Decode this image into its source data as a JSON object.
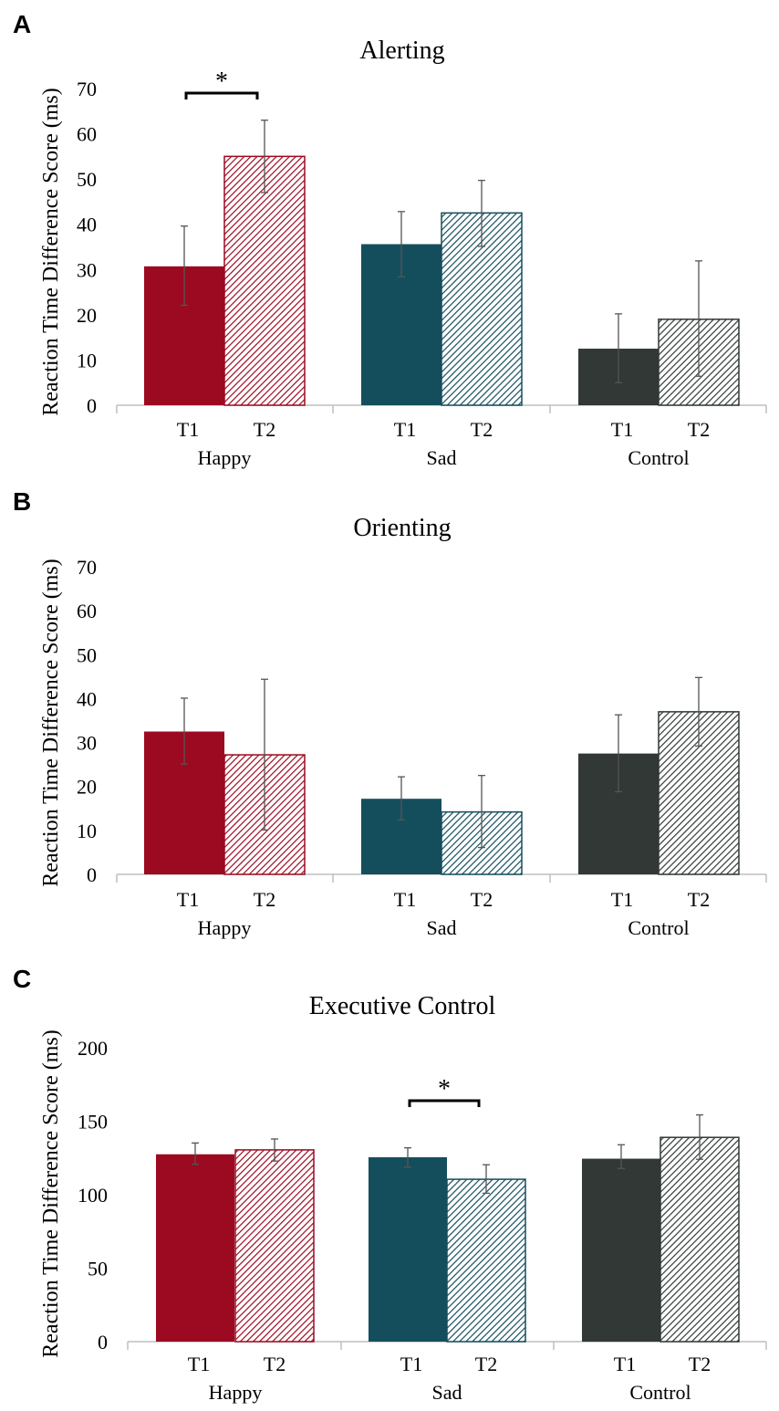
{
  "colors": {
    "happy": "#9b0a20",
    "sad": "#144e5c",
    "control": "#313836",
    "axis": "#bfbfbf",
    "error": "#555555"
  },
  "chart_data": [
    {
      "panel": "A",
      "type": "bar",
      "title": "Alerting",
      "ylabel": "Reaction Time Difference Score (ms)",
      "xlabel": "",
      "ylim": [
        0,
        70
      ],
      "yticks": [
        0,
        10,
        20,
        30,
        40,
        50,
        60,
        70
      ],
      "groups": [
        "Happy",
        "Sad",
        "Control"
      ],
      "categories": [
        "T1",
        "T2"
      ],
      "series": [
        {
          "group": "Happy",
          "time": "T1",
          "value": 30.7,
          "error_low": 22.1,
          "error_high": 39.6,
          "color_key": "happy",
          "pattern": false
        },
        {
          "group": "Happy",
          "time": "T2",
          "value": 55.0,
          "error_low": 47.0,
          "error_high": 63.0,
          "color_key": "happy",
          "pattern": true
        },
        {
          "group": "Sad",
          "time": "T1",
          "value": 35.6,
          "error_low": 28.4,
          "error_high": 42.8,
          "color_key": "sad",
          "pattern": false
        },
        {
          "group": "Sad",
          "time": "T2",
          "value": 42.5,
          "error_low": 35.1,
          "error_high": 49.7,
          "color_key": "sad",
          "pattern": true
        },
        {
          "group": "Control",
          "time": "T1",
          "value": 12.5,
          "error_low": 5.0,
          "error_high": 20.2,
          "color_key": "control",
          "pattern": false
        },
        {
          "group": "Control",
          "time": "T2",
          "value": 19.0,
          "error_low": 6.4,
          "error_high": 31.9,
          "color_key": "control",
          "pattern": true
        }
      ],
      "significance": [
        {
          "group": "Happy",
          "label": "*",
          "y": 69.0
        }
      ]
    },
    {
      "panel": "B",
      "type": "bar",
      "title": "Orienting",
      "ylabel": "Reaction Time Difference Score (ms)",
      "xlabel": "",
      "ylim": [
        0,
        70
      ],
      "yticks": [
        0,
        10,
        20,
        30,
        40,
        50,
        60,
        70
      ],
      "groups": [
        "Happy",
        "Sad",
        "Control"
      ],
      "categories": [
        "T1",
        "T2"
      ],
      "series": [
        {
          "group": "Happy",
          "time": "T1",
          "value": 32.5,
          "error_low": 25.1,
          "error_high": 40.1,
          "color_key": "happy",
          "pattern": false
        },
        {
          "group": "Happy",
          "time": "T2",
          "value": 27.2,
          "error_low": 10.1,
          "error_high": 44.4,
          "color_key": "happy",
          "pattern": true
        },
        {
          "group": "Sad",
          "time": "T1",
          "value": 17.2,
          "error_low": 12.4,
          "error_high": 22.2,
          "color_key": "sad",
          "pattern": false
        },
        {
          "group": "Sad",
          "time": "T2",
          "value": 14.2,
          "error_low": 6.1,
          "error_high": 22.5,
          "color_key": "sad",
          "pattern": true
        },
        {
          "group": "Control",
          "time": "T1",
          "value": 27.5,
          "error_low": 18.8,
          "error_high": 36.3,
          "color_key": "control",
          "pattern": false
        },
        {
          "group": "Control",
          "time": "T2",
          "value": 37.0,
          "error_low": 29.2,
          "error_high": 44.8,
          "color_key": "control",
          "pattern": true
        }
      ],
      "significance": []
    },
    {
      "panel": "C",
      "type": "bar",
      "title": "Executive Control",
      "ylabel": "Reaction Time Difference Score (ms)",
      "xlabel": "",
      "ylim": [
        0,
        200
      ],
      "yticks": [
        0,
        50,
        100,
        150,
        200
      ],
      "groups": [
        "Happy",
        "Sad",
        "Control"
      ],
      "categories": [
        "T1",
        "T2"
      ],
      "series": [
        {
          "group": "Happy",
          "time": "T1",
          "value": 127.5,
          "error_low": 120.7,
          "error_high": 135.2,
          "color_key": "happy",
          "pattern": false
        },
        {
          "group": "Happy",
          "time": "T2",
          "value": 130.5,
          "error_low": 122.9,
          "error_high": 137.9,
          "color_key": "happy",
          "pattern": true
        },
        {
          "group": "Sad",
          "time": "T1",
          "value": 125.5,
          "error_low": 118.8,
          "error_high": 131.9,
          "color_key": "sad",
          "pattern": false
        },
        {
          "group": "Sad",
          "time": "T2",
          "value": 110.5,
          "error_low": 101.0,
          "error_high": 120.4,
          "color_key": "sad",
          "pattern": true
        },
        {
          "group": "Control",
          "time": "T1",
          "value": 124.5,
          "error_low": 117.9,
          "error_high": 134.0,
          "color_key": "control",
          "pattern": false
        },
        {
          "group": "Control",
          "time": "T2",
          "value": 139.0,
          "error_low": 124.1,
          "error_high": 154.3,
          "color_key": "control",
          "pattern": true
        }
      ],
      "significance": [
        {
          "group": "Sad",
          "label": "*",
          "y": 164.0
        }
      ]
    }
  ]
}
